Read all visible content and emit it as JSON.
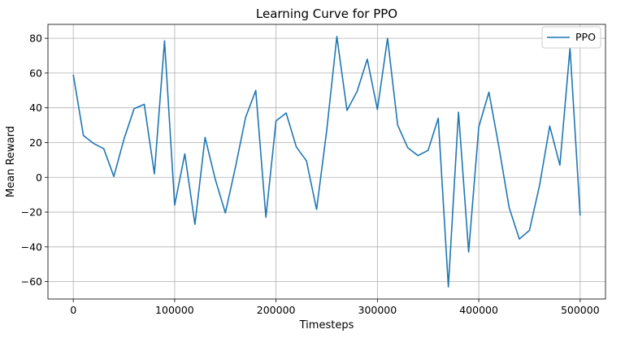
{
  "chart_data": {
    "type": "line",
    "title": "Learning Curve for PPO",
    "xlabel": "Timesteps",
    "ylabel": "Mean Reward",
    "xlim": [
      -25000,
      525000
    ],
    "ylim": [
      -70,
      88
    ],
    "xticks": [
      0,
      100000,
      200000,
      300000,
      400000,
      500000
    ],
    "xtick_labels": [
      "0",
      "100000",
      "200000",
      "300000",
      "400000",
      "500000"
    ],
    "yticks": [
      -60,
      -40,
      -20,
      0,
      20,
      40,
      60,
      80
    ],
    "ytick_labels": [
      "−60",
      "−40",
      "−20",
      "0",
      "20",
      "40",
      "60",
      "80"
    ],
    "grid": true,
    "legend_position": "top-right",
    "series": [
      {
        "name": "PPO",
        "color": "#1f77b4",
        "x": [
          0,
          10000,
          20000,
          30000,
          40000,
          50000,
          60000,
          70000,
          80000,
          90000,
          100000,
          110000,
          120000,
          130000,
          140000,
          150000,
          160000,
          170000,
          180000,
          190000,
          200000,
          210000,
          220000,
          230000,
          240000,
          250000,
          260000,
          270000,
          280000,
          290000,
          300000,
          310000,
          320000,
          330000,
          340000,
          350000,
          360000,
          370000,
          380000,
          390000,
          400000,
          410000,
          420000,
          430000,
          440000,
          450000,
          460000,
          470000,
          480000,
          490000,
          500000
        ],
        "y": [
          59,
          24,
          19.5,
          16.5,
          0.5,
          22,
          39.5,
          42,
          2,
          78.5,
          -16,
          13.5,
          -27,
          23,
          -1,
          -20.5,
          6,
          34.5,
          50,
          -23,
          32.5,
          37,
          17.5,
          9.5,
          -18.5,
          27,
          81,
          38.5,
          49.5,
          68,
          39,
          80,
          30,
          17,
          12.5,
          15.5,
          34,
          -63,
          37.5,
          -43,
          29,
          49,
          17,
          -17.5,
          -35.5,
          -30.5,
          -4.5,
          29.5,
          7,
          74.5,
          -22
        ]
      }
    ]
  }
}
